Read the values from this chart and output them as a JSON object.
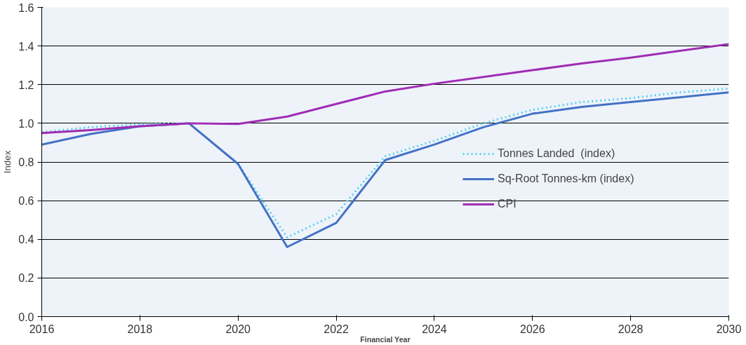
{
  "chart_data": {
    "type": "line",
    "xlabel": "Financial Year",
    "ylabel": "Index",
    "x": [
      2016,
      2017,
      2018,
      2019,
      2020,
      2021,
      2022,
      2023,
      2024,
      2025,
      2026,
      2027,
      2028,
      2029,
      2030
    ],
    "series": [
      {
        "name": "Tonnes Landed  (index)",
        "color": "#5bd0f0",
        "line_style": "dotted",
        "values": [
          0.955,
          0.98,
          0.995,
          1.0,
          0.79,
          0.41,
          0.53,
          0.83,
          0.91,
          1.0,
          1.07,
          1.11,
          1.13,
          1.16,
          1.18
        ]
      },
      {
        "name": "Sq-Root Tonnes-km (index)",
        "color": "#4472c4",
        "line_style": "solid",
        "values": [
          0.89,
          0.945,
          0.985,
          1.0,
          0.79,
          0.36,
          0.485,
          0.81,
          0.89,
          0.98,
          1.05,
          1.085,
          1.11,
          1.135,
          1.16
        ]
      },
      {
        "name": "CPI",
        "color": "#a02cb4",
        "line_style": "solid",
        "values": [
          0.95,
          0.965,
          0.985,
          1.0,
          0.997,
          1.035,
          1.1,
          1.165,
          1.205,
          1.24,
          1.275,
          1.31,
          1.34,
          1.375,
          1.41
        ]
      }
    ],
    "xlim": [
      2016,
      2030
    ],
    "xticks": [
      2016,
      2018,
      2020,
      2022,
      2024,
      2026,
      2028,
      2030
    ],
    "ylim": [
      0,
      1.6
    ],
    "yticks": [
      {
        "value": 0,
        "label": "0.0"
      },
      {
        "value": 0.2,
        "label": "0.2"
      },
      {
        "value": 0.4,
        "label": "0.4"
      },
      {
        "value": 0.6,
        "label": "0.6"
      },
      {
        "value": 0.8,
        "label": "0.8"
      },
      {
        "value": 1,
        "label": "1.0"
      },
      {
        "value": 1.2,
        "label": "1.2"
      },
      {
        "value": 1.4,
        "label": "1.4"
      },
      {
        "value": 1.6,
        "label": "1.6"
      }
    ],
    "grid": "y",
    "legend": "right",
    "marker": "none"
  }
}
